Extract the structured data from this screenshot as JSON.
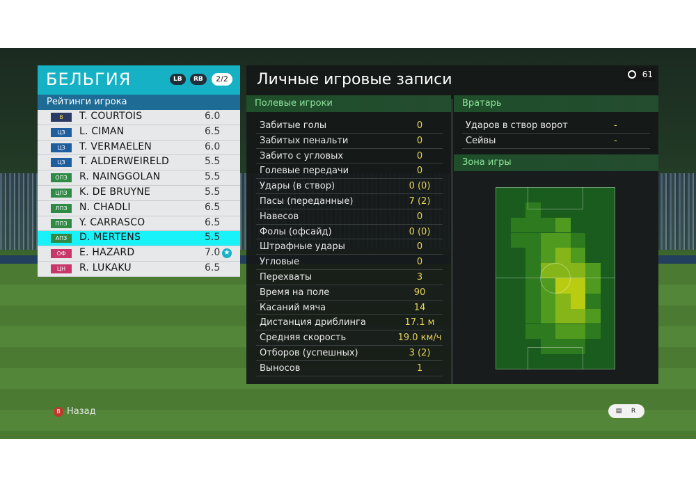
{
  "team": {
    "name": "БЕЛЬГИЯ",
    "lb": "LB",
    "rb": "RB",
    "page": "2/2"
  },
  "ratings_header": "Рейтинги игрока",
  "players": [
    {
      "pos": "В",
      "pos_color": "#2a3a63",
      "pos_text": "#f3d34a",
      "name": "T. COURTOIS",
      "rating": "6.0",
      "selected": false,
      "star": false
    },
    {
      "pos": "ЦЗ",
      "pos_color": "#1f5e9e",
      "pos_text": "#ffffff",
      "name": "L. CIMAN",
      "rating": "6.5",
      "selected": false,
      "star": false
    },
    {
      "pos": "ЦЗ",
      "pos_color": "#1f5e9e",
      "pos_text": "#ffffff",
      "name": "T. VERMAELEN",
      "rating": "6.0",
      "selected": false,
      "star": false
    },
    {
      "pos": "ЦЗ",
      "pos_color": "#1f5e9e",
      "pos_text": "#ffffff",
      "name": "T. ALDERWEIRELD",
      "rating": "5.5",
      "selected": false,
      "star": false
    },
    {
      "pos": "ОПЗ",
      "pos_color": "#2e8a45",
      "pos_text": "#ffffff",
      "name": "R. NAINGGOLAN",
      "rating": "5.5",
      "selected": false,
      "star": false
    },
    {
      "pos": "ЦПЗ",
      "pos_color": "#2e8a45",
      "pos_text": "#ffffff",
      "name": "K. DE BRUYNE",
      "rating": "5.5",
      "selected": false,
      "star": false
    },
    {
      "pos": "ЛПЗ",
      "pos_color": "#2e8a45",
      "pos_text": "#ffffff",
      "name": "N. CHADLI",
      "rating": "6.5",
      "selected": false,
      "star": false
    },
    {
      "pos": "ППЗ",
      "pos_color": "#2e8a45",
      "pos_text": "#ffffff",
      "name": "Y. CARRASCO",
      "rating": "6.5",
      "selected": false,
      "star": false
    },
    {
      "pos": "АПЗ",
      "pos_color": "#2e8a45",
      "pos_text": "#ffffff",
      "name": "D. MERTENS",
      "rating": "5.5",
      "selected": true,
      "star": false
    },
    {
      "pos": "ОФ",
      "pos_color": "#c8366a",
      "pos_text": "#ffffff",
      "name": "E. HAZARD",
      "rating": "7.0",
      "selected": false,
      "star": true
    },
    {
      "pos": "ЦН",
      "pos_color": "#c8366a",
      "pos_text": "#ffffff",
      "name": "R. LUKAKU",
      "rating": "6.5",
      "selected": false,
      "star": false
    }
  ],
  "stats": {
    "title": "Личные игровые записи",
    "timer": "61",
    "field_header": "Полевые игроки",
    "goalkeeper_header": "Вратарь",
    "zone_header": "Зона игры",
    "field_rows": [
      {
        "label": "Забитые голы",
        "value": "0"
      },
      {
        "label": "Забитых пенальти",
        "value": "0"
      },
      {
        "label": "Забито с угловых",
        "value": "0"
      },
      {
        "label": "Голевые передачи",
        "value": "0"
      },
      {
        "label": "Удары (в створ)",
        "value": "0 (0)"
      },
      {
        "label": "Пасы (переданные)",
        "value": "7 (2)"
      },
      {
        "label": "Навесов",
        "value": "0"
      },
      {
        "label": "Фолы (офсайд)",
        "value": "0 (0)"
      },
      {
        "label": "Штрафные удары",
        "value": "0"
      },
      {
        "label": "Угловые",
        "value": "0"
      },
      {
        "label": "Перехваты",
        "value": "3"
      },
      {
        "label": "Время на поле",
        "value": "90"
      },
      {
        "label": "Касаний мяча",
        "value": "14"
      },
      {
        "label": "Дистанция дриблинга",
        "value": "17.1 м"
      },
      {
        "label": "Средняя скорость",
        "value": "19.0 км/ч"
      },
      {
        "label": "Отборов (успешных)",
        "value": "3 (2)"
      },
      {
        "label": "Выносов",
        "value": "1"
      }
    ],
    "gk_rows": [
      {
        "label": "Ударов в створ ворот",
        "value": "-"
      },
      {
        "label": "Сейвы",
        "value": "-"
      }
    ],
    "heatmap": {
      "cols": 8,
      "rows": 12,
      "colors": [
        "#1a5c1e",
        "#2d7a1f",
        "#4f9a1f",
        "#86b51a",
        "#b9cc12"
      ],
      "levels": [
        [
          0,
          0,
          0,
          0,
          0,
          0,
          0,
          0
        ],
        [
          0,
          0,
          1,
          0,
          0,
          0,
          0,
          0
        ],
        [
          0,
          1,
          1,
          1,
          2,
          0,
          0,
          0
        ],
        [
          0,
          1,
          1,
          2,
          2,
          1,
          0,
          0
        ],
        [
          0,
          0,
          1,
          2,
          3,
          2,
          0,
          0
        ],
        [
          0,
          0,
          1,
          3,
          3,
          3,
          2,
          0
        ],
        [
          0,
          0,
          1,
          2,
          4,
          4,
          2,
          0
        ],
        [
          0,
          0,
          1,
          2,
          3,
          4,
          1,
          0
        ],
        [
          0,
          0,
          1,
          2,
          3,
          3,
          2,
          0
        ],
        [
          0,
          0,
          1,
          1,
          2,
          2,
          1,
          0
        ],
        [
          0,
          0,
          0,
          1,
          1,
          1,
          0,
          0
        ],
        [
          0,
          0,
          0,
          0,
          0,
          0,
          0,
          0
        ]
      ]
    }
  },
  "footer": {
    "back_label": "Назад",
    "back_button": "B",
    "right_glyph_1": "▤",
    "right_glyph_2": "R"
  }
}
